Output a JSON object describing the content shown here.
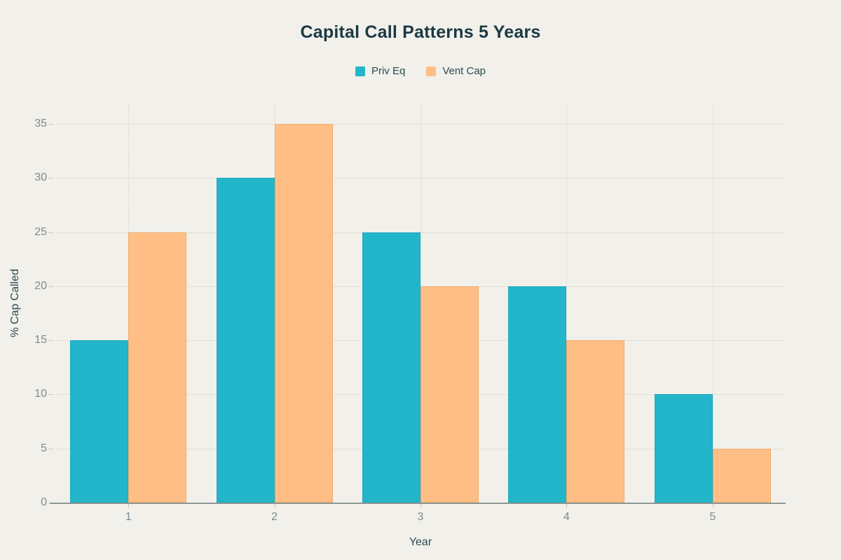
{
  "title": "Capital Call Patterns 5 Years",
  "legend": {
    "items": [
      {
        "label": "Priv Eq",
        "color": "#23B5C9",
        "border_color": "#1FAABD"
      },
      {
        "label": "Vent Cap",
        "color": "#FFBE85",
        "border_color": "#F3AC6C"
      }
    ]
  },
  "chart_data": {
    "type": "bar",
    "title": "Capital Call Patterns 5 Years",
    "xlabel": "Year",
    "ylabel": "% Cap Called",
    "categories": [
      "1",
      "2",
      "3",
      "4",
      "5"
    ],
    "series": [
      {
        "name": "Priv Eq",
        "color": "#23B5C9",
        "values": [
          15,
          30,
          25,
          20,
          10
        ]
      },
      {
        "name": "Vent Cap",
        "color": "#FFBE85",
        "values": [
          25,
          35,
          20,
          15,
          5
        ]
      }
    ],
    "ylim": [
      0,
      35
    ],
    "yticks": [
      0,
      5,
      10,
      15,
      20,
      25,
      30,
      35
    ],
    "grid": true,
    "legend_position": "top"
  },
  "colors": {
    "background": "#F1F0EA",
    "title_text": "#1C3943",
    "axis_title_text": "#2B4A53",
    "tick_label_text": "#7E8A8E",
    "gridline": "#E0E0D7",
    "tick_dash": "#C9C9C0",
    "axis_line": "#8D9795"
  }
}
